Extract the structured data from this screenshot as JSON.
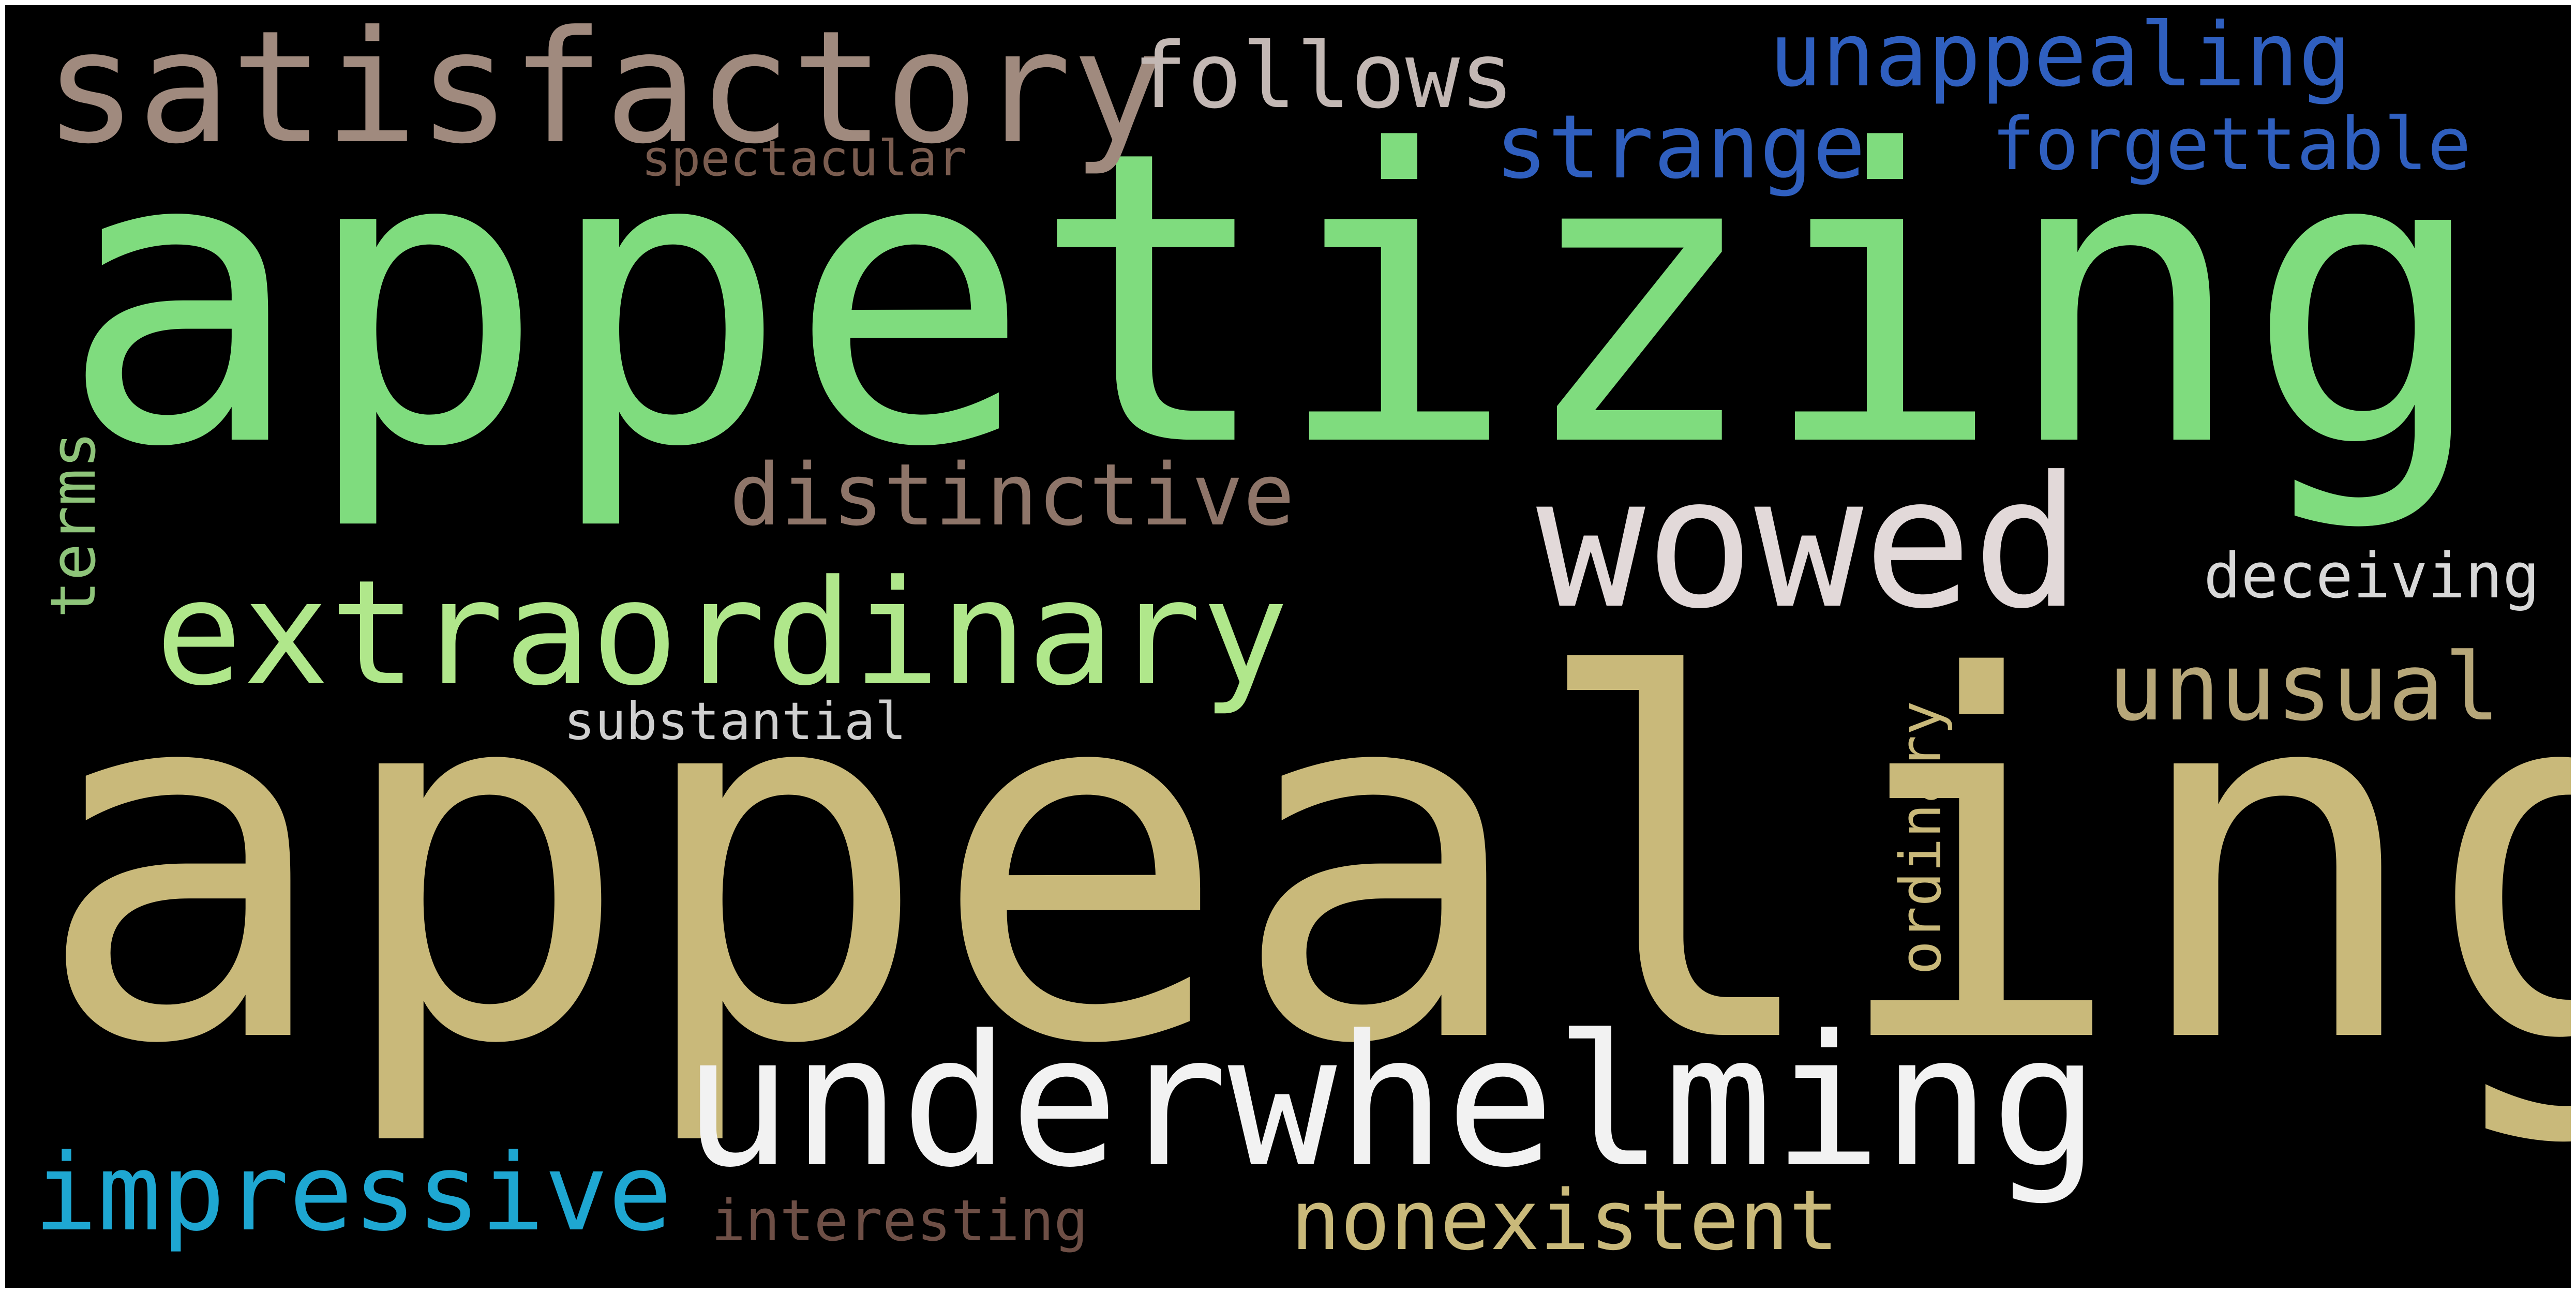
{
  "words": [
    {
      "text": "appetizing",
      "color": "#7fdc7e"
    },
    {
      "text": "appealing",
      "color": "#c9b97a"
    },
    {
      "text": "underwhelming",
      "color": "#f2f2f2"
    },
    {
      "text": "satisfactory",
      "color": "#a08a7e"
    },
    {
      "text": "extraordinary",
      "color": "#b0e78b"
    },
    {
      "text": "wowed",
      "color": "#e2d9d9"
    },
    {
      "text": "follows",
      "color": "#c3b8b4"
    },
    {
      "text": "unappealing",
      "color": "#2f5fbf"
    },
    {
      "text": "strange",
      "color": "#2f5fbf"
    },
    {
      "text": "forgettable",
      "color": "#2f5fbf"
    },
    {
      "text": "spectacular",
      "color": "#7a5c4f"
    },
    {
      "text": "distinctive",
      "color": "#8e7569"
    },
    {
      "text": "unusual",
      "color": "#b7a779"
    },
    {
      "text": "deceiving",
      "color": "#d8d8d8"
    },
    {
      "text": "terms",
      "color": "#8ec47a"
    },
    {
      "text": "substantial",
      "color": "#cfcfcf"
    },
    {
      "text": "ordinary",
      "color": "#c9b97a"
    },
    {
      "text": "impressive",
      "color": "#1ea7d2"
    },
    {
      "text": "interesting",
      "color": "#6e4f46"
    },
    {
      "text": "nonexistent",
      "color": "#c9b97a"
    }
  ]
}
